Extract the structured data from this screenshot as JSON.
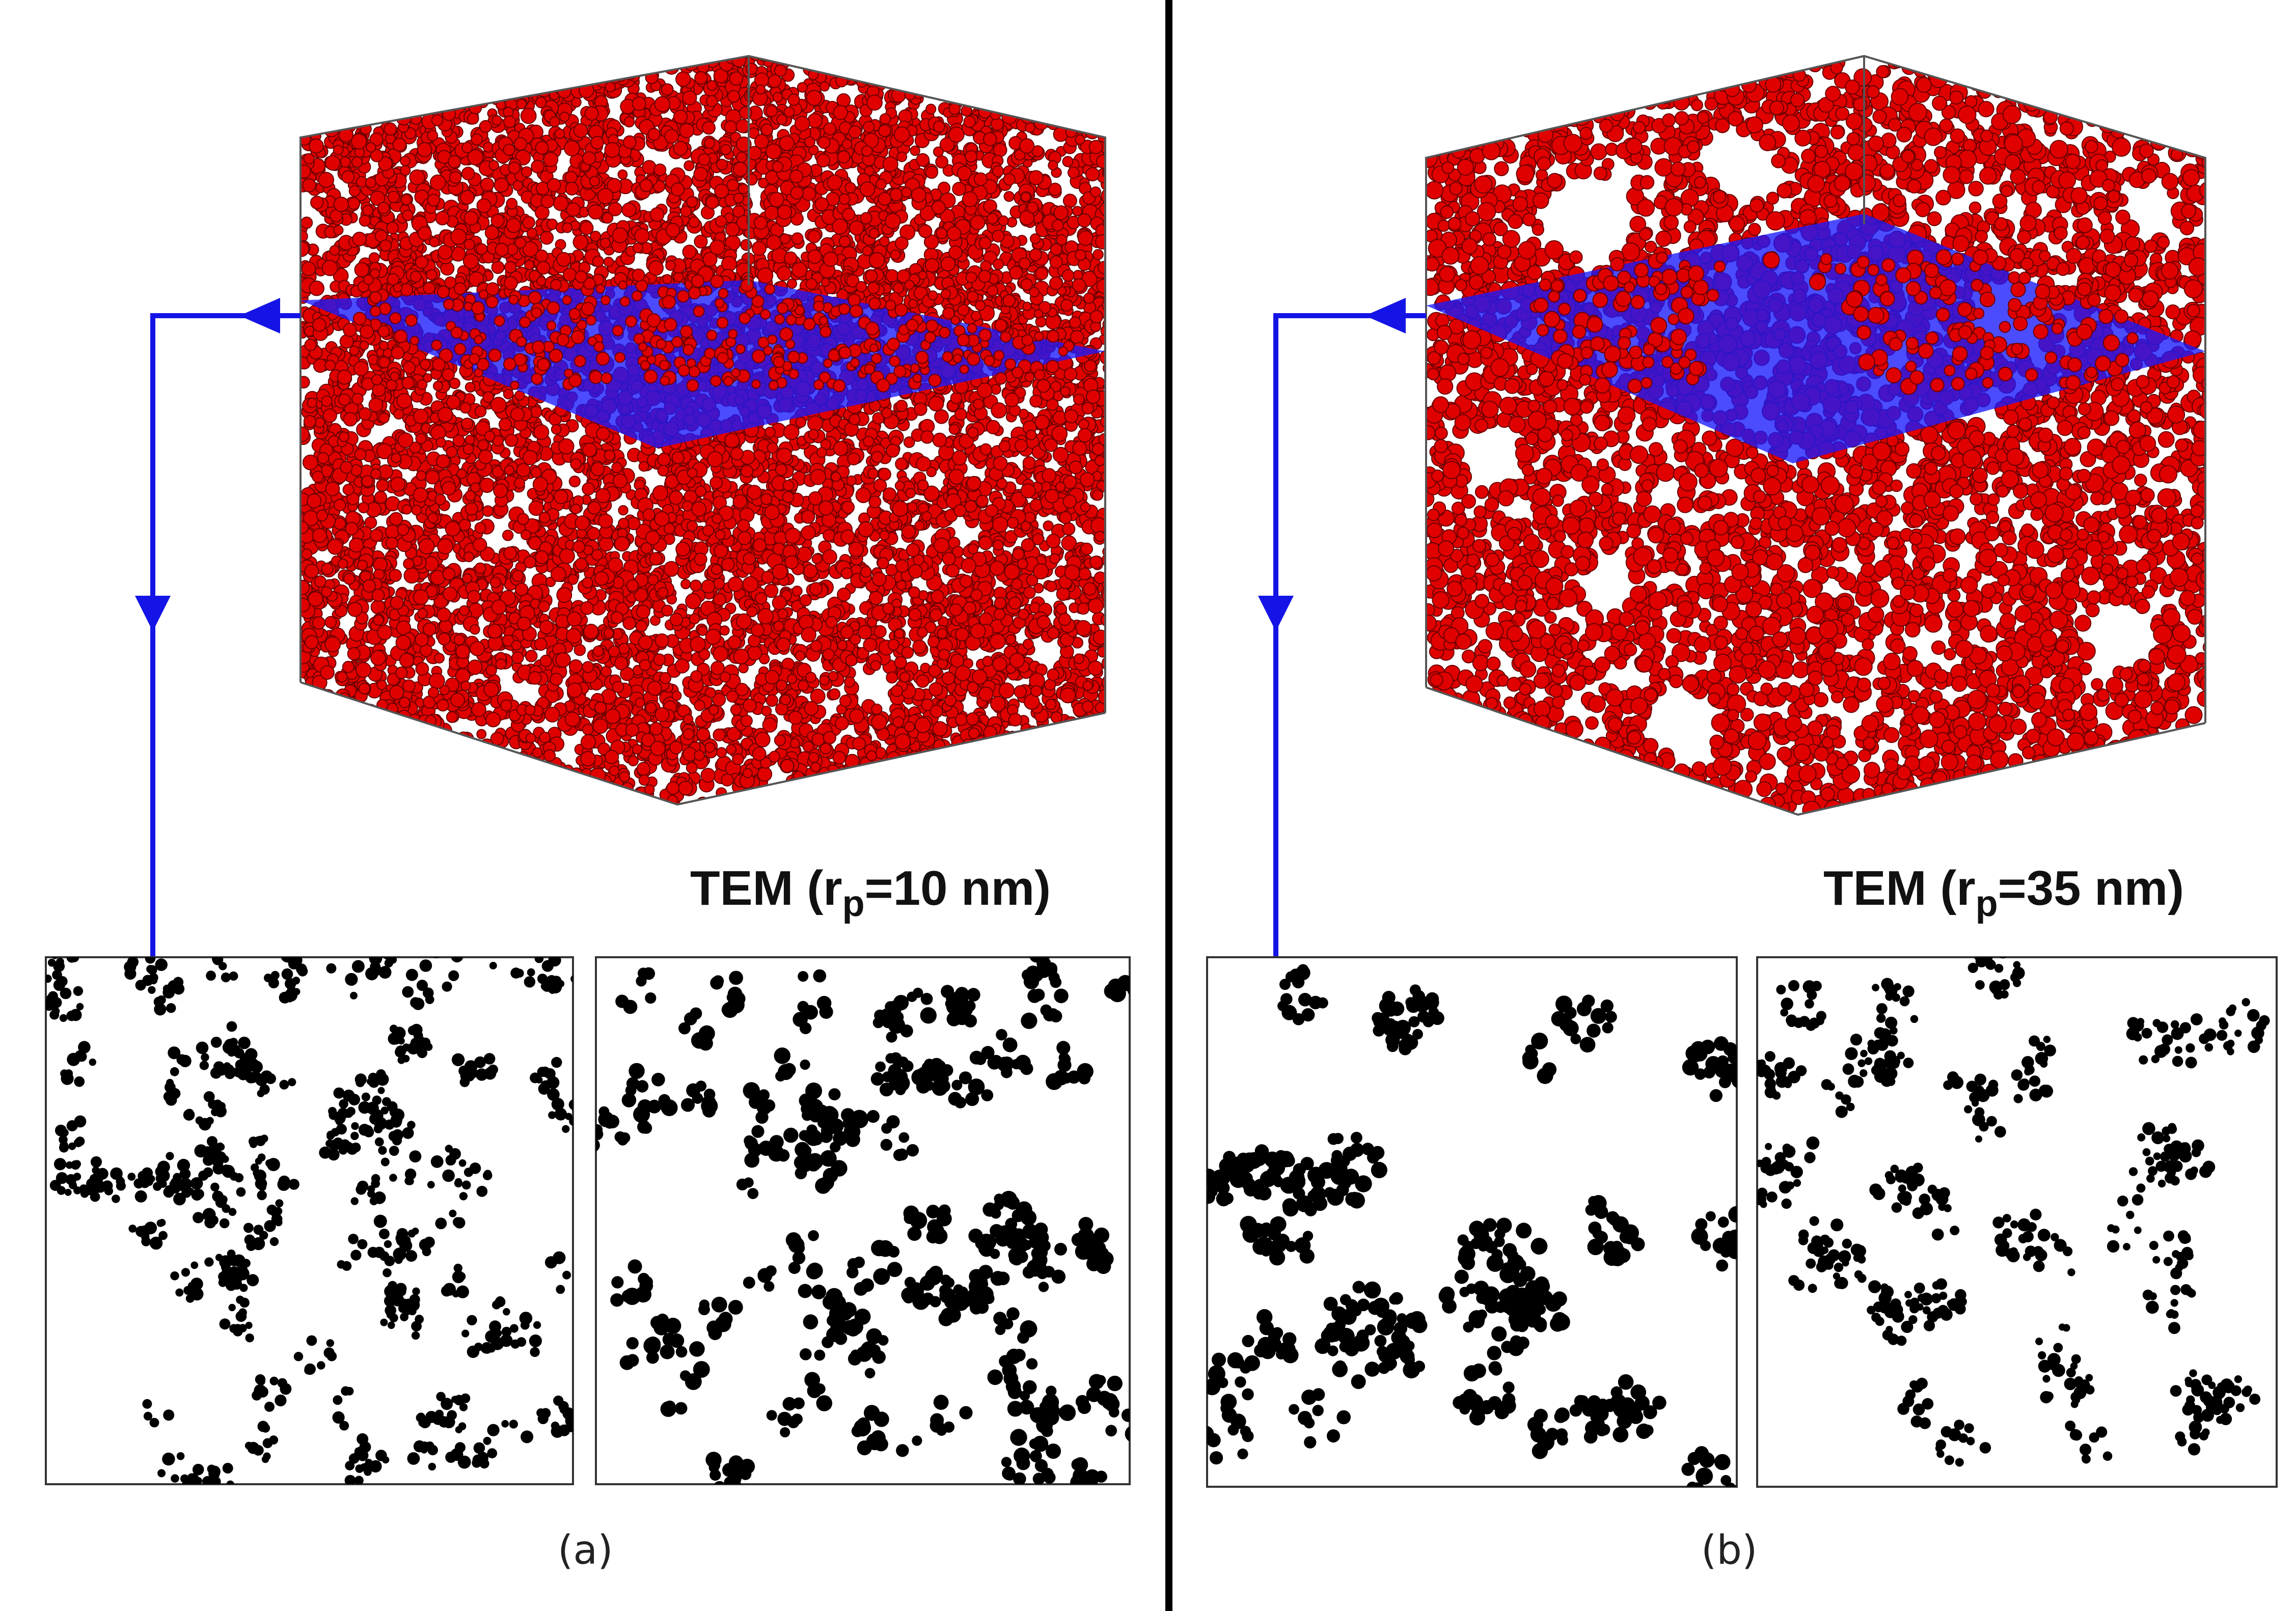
{
  "panels": [
    {
      "id": "a",
      "tem_label_prefix": "TEM (r",
      "tem_label_sub": "p",
      "tem_label_suffix": "=10 nm)",
      "caption": "(a)",
      "particle_color": "#e00000",
      "plane_color": "#1a1aff"
    },
    {
      "id": "b",
      "tem_label_prefix": "TEM (r",
      "tem_label_sub": "p",
      "tem_label_suffix": "=35 nm)",
      "caption": "(b)",
      "particle_color": "#e00000",
      "plane_color": "#1a1aff"
    }
  ],
  "colors": {
    "arrow": "#1414e6",
    "divider": "#000000",
    "tem_blob": "#000000"
  }
}
